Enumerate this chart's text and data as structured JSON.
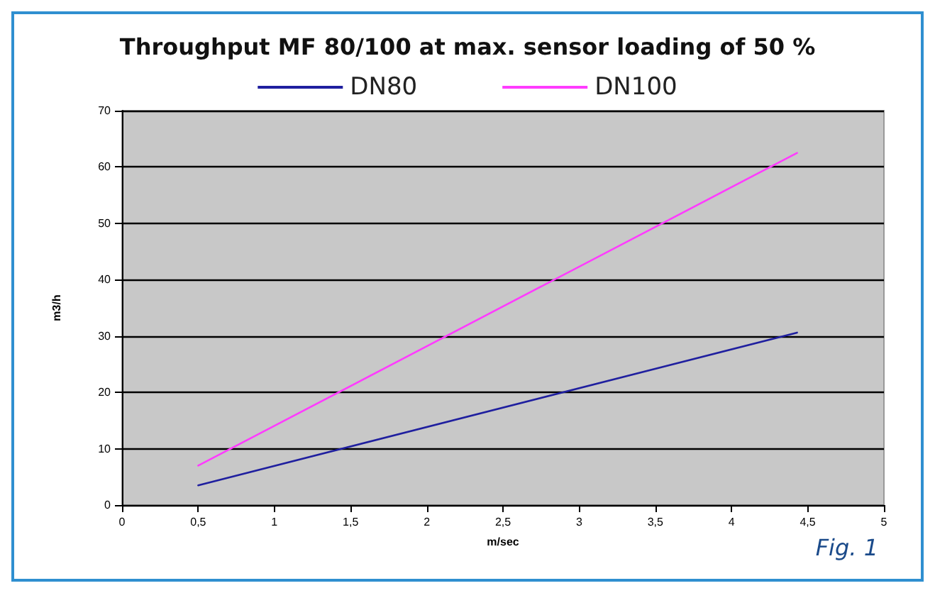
{
  "chart_data": {
    "type": "line",
    "title": "Throughput MF 80/100 at max. sensor loading of 50 %",
    "xlabel": "m/sec",
    "ylabel": "m3/h",
    "annotations": [
      "Fig. 1"
    ],
    "x": [
      0.5,
      4.43
    ],
    "series": [
      {
        "name": "DN80",
        "color": "#1f1f9f",
        "values": [
          3.5,
          30.6
        ]
      },
      {
        "name": "DN100",
        "color": "#ff3cff",
        "values": [
          7.0,
          62.5
        ]
      }
    ],
    "xlim": [
      0,
      5
    ],
    "xticks": [
      0,
      {
        "value": 0.5,
        "label": "0,5"
      },
      1,
      {
        "value": 1.5,
        "label": "1,5"
      },
      2,
      {
        "value": 2.5,
        "label": "2,5"
      },
      3,
      {
        "value": 3.5,
        "label": "3,5"
      },
      4,
      {
        "value": 4.5,
        "label": "4,5"
      },
      5
    ],
    "ylim": [
      0,
      70
    ],
    "yticks": [
      0,
      10,
      20,
      30,
      40,
      50,
      60,
      70
    ],
    "grid": "y",
    "legend": "top",
    "marker": "none",
    "line_style": "solid"
  }
}
